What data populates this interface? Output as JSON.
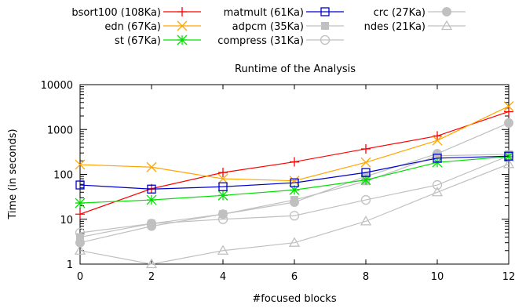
{
  "chart_data": {
    "type": "line",
    "title": "Runtime of the Analysis",
    "xlabel": "#focused blocks",
    "ylabel": "Time (in seconds)",
    "x": [
      0,
      2,
      4,
      6,
      8,
      10,
      12
    ],
    "xlim": [
      0,
      12
    ],
    "ylim": [
      1,
      10000
    ],
    "yscale": "log",
    "x_ticks": [
      "0",
      "2",
      "4",
      "6",
      "8",
      "10",
      "12"
    ],
    "y_ticks": [
      "1",
      "10",
      "100",
      "1000",
      "10000"
    ],
    "grid": false,
    "legend_position": "top",
    "series": [
      {
        "name": "bsort100 (108Ka)",
        "color": "#ff0000",
        "marker": "plus",
        "values": [
          13,
          48,
          110,
          190,
          370,
          720,
          2500
        ]
      },
      {
        "name": "edn (67Ka)",
        "color": "#ffa500",
        "marker": "x",
        "values": [
          165,
          145,
          80,
          72,
          185,
          570,
          3300
        ]
      },
      {
        "name": "st (67Ka)",
        "color": "#00e000",
        "marker": "star",
        "values": [
          23,
          27,
          34,
          45,
          75,
          185,
          250
        ]
      },
      {
        "name": "matmult (61Ka)",
        "color": "#0000cc",
        "marker": "square-open",
        "values": [
          58,
          47,
          53,
          65,
          110,
          230,
          255
        ]
      },
      {
        "name": "adpcm (35Ka)",
        "color": "#c0c0c0",
        "marker": "square-filled",
        "values": [
          4,
          8,
          13,
          27,
          70,
          260,
          280
        ]
      },
      {
        "name": "compress (31Ka)",
        "color": "#c0c0c0",
        "marker": "circle-open",
        "values": [
          5,
          8,
          10,
          12,
          27,
          58,
          260
        ]
      },
      {
        "name": "crc (27Ka)",
        "color": "#c0c0c0",
        "marker": "circle-filled",
        "values": [
          3,
          7,
          13,
          24,
          90,
          290,
          1400
        ]
      },
      {
        "name": "ndes (21Ka)",
        "color": "#c0c0c0",
        "marker": "triangle-open",
        "values": [
          2,
          1,
          2,
          3,
          9,
          40,
          170
        ]
      }
    ]
  }
}
